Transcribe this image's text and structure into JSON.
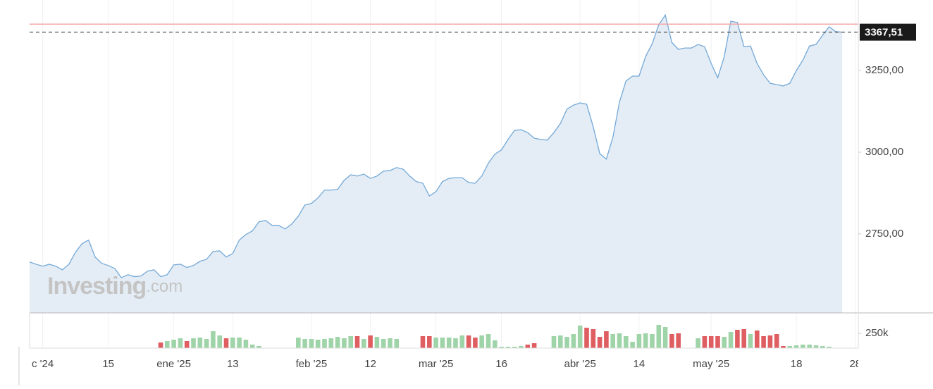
{
  "chart_data": {
    "type": "line",
    "watermark": {
      "brand": "Investing",
      "suffix": ".com"
    },
    "categories": [
      null,
      null,
      "c '24",
      null,
      null,
      null,
      null,
      null,
      null,
      null,
      null,
      null,
      "15",
      null,
      null,
      null,
      null,
      null,
      null,
      null,
      null,
      null,
      "ene '25",
      null,
      null,
      null,
      null,
      null,
      null,
      null,
      null,
      "13",
      null,
      null,
      null,
      null,
      null,
      null,
      null,
      null,
      null,
      null,
      null,
      "feb '25",
      null,
      null,
      null,
      null,
      null,
      null,
      null,
      null,
      "12",
      null,
      null,
      null,
      null,
      null,
      null,
      null,
      null,
      null,
      "mar '25",
      null,
      null,
      null,
      null,
      null,
      null,
      null,
      null,
      null,
      "16",
      null,
      null,
      null,
      null,
      null,
      null,
      null,
      null,
      null,
      null,
      null,
      "abr '25",
      null,
      null,
      null,
      null,
      null,
      null,
      null,
      null,
      "14",
      null,
      null,
      null,
      null,
      null,
      null,
      null,
      null,
      null,
      null,
      "may '25",
      null,
      null,
      null,
      null,
      null,
      null,
      null,
      null,
      null,
      null,
      null,
      null,
      "18",
      null,
      null,
      null,
      null,
      null,
      null,
      null,
      null,
      "28"
    ],
    "values": [
      2664,
      2657,
      2651,
      2657,
      2651,
      2640,
      2657,
      2694,
      2720,
      2731,
      2679,
      2660,
      2653,
      2644,
      2616,
      2625,
      2619,
      2621,
      2636,
      2640,
      2619,
      2625,
      2655,
      2657,
      2647,
      2653,
      2666,
      2672,
      2696,
      2698,
      2679,
      2690,
      2731,
      2748,
      2759,
      2787,
      2791,
      2776,
      2776,
      2765,
      2780,
      2804,
      2838,
      2843,
      2860,
      2884,
      2884,
      2886,
      2914,
      2931,
      2927,
      2933,
      2920,
      2927,
      2942,
      2944,
      2953,
      2948,
      2927,
      2910,
      2905,
      2866,
      2879,
      2910,
      2920,
      2922,
      2922,
      2907,
      2905,
      2927,
      2966,
      2994,
      3007,
      3039,
      3067,
      3069,
      3060,
      3043,
      3039,
      3037,
      3060,
      3088,
      3132,
      3144,
      3151,
      3147,
      3078,
      2996,
      2979,
      3045,
      3153,
      3218,
      3233,
      3233,
      3293,
      3332,
      3390,
      3420,
      3336,
      3315,
      3319,
      3319,
      3330,
      3323,
      3272,
      3228,
      3293,
      3401,
      3397,
      3323,
      3325,
      3272,
      3237,
      3211,
      3207,
      3203,
      3211,
      3250,
      3282,
      3325,
      3330,
      3358,
      3384,
      3369,
      3367.51,
      null,
      null
    ],
    "color": "#74a9d8",
    "fill_color": "#e4edf5",
    "ylim": [
      2508,
      3466
    ],
    "yticks": [
      {
        "value": 2750,
        "label": "2750,00"
      },
      {
        "value": 3000,
        "label": "3000,00"
      },
      {
        "value": 3250,
        "label": "3250,00"
      }
    ],
    "last_price": {
      "value": 3367.51,
      "label": "3367,51"
    },
    "high_line": 3392,
    "high_line_color": "#f4a7a7",
    "grid": true,
    "volume": {
      "values": [
        null,
        null,
        null,
        null,
        null,
        null,
        null,
        null,
        null,
        null,
        null,
        null,
        null,
        null,
        null,
        null,
        null,
        null,
        null,
        null,
        96000,
        120000,
        144000,
        168000,
        120000,
        168000,
        180000,
        156000,
        288000,
        216000,
        168000,
        180000,
        180000,
        144000,
        60000,
        36000,
        null,
        null,
        null,
        null,
        null,
        180000,
        156000,
        156000,
        144000,
        156000,
        168000,
        192000,
        168000,
        204000,
        204000,
        156000,
        216000,
        192000,
        156000,
        168000,
        156000,
        null,
        null,
        null,
        204000,
        204000,
        180000,
        180000,
        180000,
        168000,
        216000,
        216000,
        180000,
        216000,
        240000,
        132000,
        24000,
        24000,
        24000,
        36000,
        60000,
        84000,
        null,
        null,
        204000,
        216000,
        192000,
        240000,
        384000,
        348000,
        324000,
        192000,
        288000,
        240000,
        252000,
        204000,
        108000,
        240000,
        252000,
        240000,
        396000,
        360000,
        240000,
        252000,
        null,
        null,
        168000,
        204000,
        204000,
        204000,
        192000,
        276000,
        312000,
        324000,
        240000,
        300000,
        204000,
        216000,
        240000,
        36000,
        36000,
        48000,
        60000,
        60000,
        48000,
        36000,
        24000,
        null,
        null,
        null,
        null
      ],
      "up_color": "#9fd4a8",
      "down_color": "#df5e62",
      "y2lim": [
        0,
        600000
      ],
      "y2ticks": [
        {
          "value": 250000,
          "label": "250k"
        }
      ]
    }
  }
}
